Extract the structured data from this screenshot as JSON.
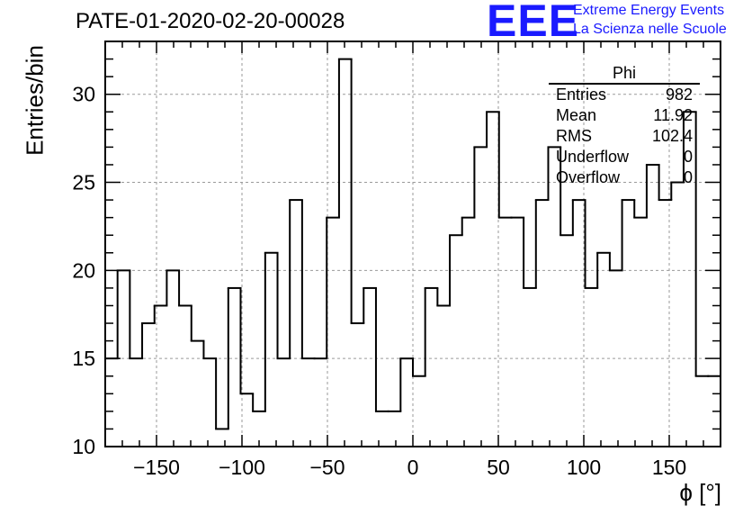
{
  "header": {
    "title": "PATE-01-2020-02-20-00028",
    "logo_text": "EEE",
    "logo_line1": "Extreme Energy Events",
    "logo_line2": "La Scienza nelle Scuole",
    "logo_color": "#1a1aff"
  },
  "stats_box": {
    "name": "Phi",
    "rows": [
      {
        "label": "Entries",
        "value": "982"
      },
      {
        "label": "Mean",
        "value": "11.92"
      },
      {
        "label": "RMS",
        "value": "102.4"
      },
      {
        "label": "Underflow",
        "value": "0"
      },
      {
        "label": "Overflow",
        "value": "0"
      }
    ]
  },
  "chart_data": {
    "type": "histogram",
    "title": "PATE-01-2020-02-20-00028",
    "xlabel": "ϕ [°]",
    "ylabel": "Entries/bin",
    "xlim": [
      -180,
      180
    ],
    "ylim": [
      10,
      33
    ],
    "bin_width": 7.2,
    "grid": true,
    "x_ticks": [
      -150,
      -100,
      -50,
      0,
      50,
      100,
      150
    ],
    "x_tick_labels": [
      "−150",
      "−100",
      "−50",
      "0",
      "50",
      "100",
      "150"
    ],
    "y_ticks": [
      10,
      15,
      20,
      25,
      30
    ],
    "y_tick_labels": [
      "10",
      "15",
      "20",
      "25",
      "30"
    ],
    "values": [
      15,
      20,
      15,
      17,
      18,
      20,
      18,
      16,
      15,
      11,
      19,
      13,
      12,
      21,
      15,
      24,
      15,
      15,
      23,
      32,
      17,
      19,
      12,
      12,
      15,
      14,
      19,
      18,
      22,
      23,
      27,
      29,
      23,
      23,
      19,
      24,
      27,
      22,
      24,
      19,
      21,
      20,
      24,
      23,
      26,
      24,
      25,
      29,
      14,
      14
    ],
    "line_color": "#000000",
    "grid_color": "#9a9a9a"
  }
}
